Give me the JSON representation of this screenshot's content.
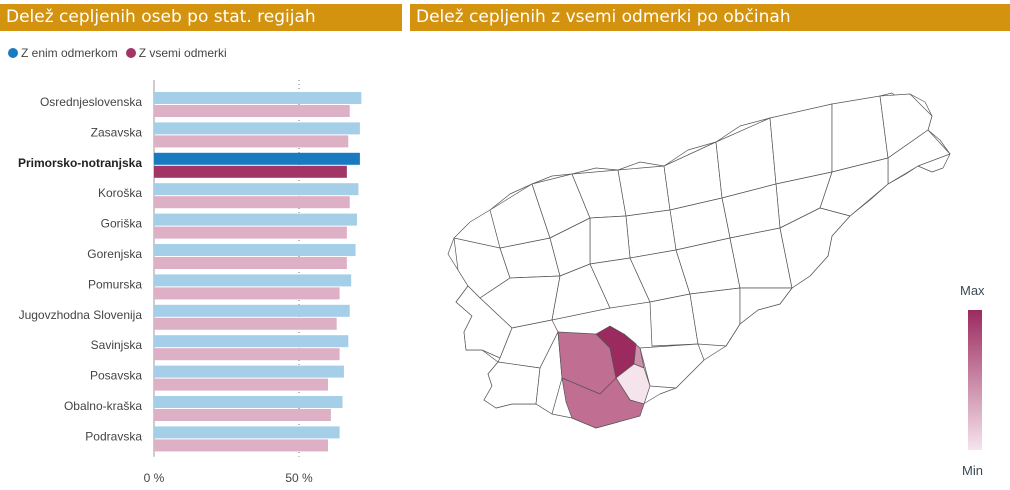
{
  "left_title": "Delež cepljenih oseb po stat. regijah",
  "right_title": "Delež cepljenih z vsemi odmerki po občinah",
  "legend": [
    {
      "label": "Z enim odmerkom",
      "color": "#1a7abf"
    },
    {
      "label": "Z vsemi odmerki",
      "color": "#a33566"
    }
  ],
  "map_scale": {
    "max_label": "Max",
    "min_label": "Min",
    "max_color": "#9b2b5f",
    "min_color": "#f6e4ec"
  },
  "chart_data": {
    "type": "bar",
    "orientation": "horizontal",
    "categories": [
      "Osrednjeslovenska",
      "Zasavska",
      "Primorsko-notranjska",
      "Koroška",
      "Goriška",
      "Gorenjska",
      "Pomurska",
      "Jugovzhodna Slovenija",
      "Savinjska",
      "Posavska",
      "Obalno-kraška",
      "Podravska"
    ],
    "highlighted": "Primorsko-notranjska",
    "series": [
      {
        "name": "Z enim odmerkom",
        "color": "#1a7abf",
        "light_color": "#a5cfe8",
        "values": [
          71.5,
          71.0,
          71.0,
          70.5,
          70.0,
          69.5,
          68.0,
          67.5,
          67.0,
          65.5,
          65.0,
          64.0
        ]
      },
      {
        "name": "Z vsemi odmerki",
        "color": "#a33566",
        "light_color": "#ddb0c6",
        "values": [
          67.5,
          67.0,
          66.5,
          67.5,
          66.5,
          66.5,
          64.0,
          63.0,
          64.0,
          60.0,
          61.0,
          60.0
        ]
      }
    ],
    "xlim": [
      0,
      100
    ],
    "xticks": [
      0,
      50
    ],
    "xtick_labels": [
      "0 %",
      "50 %"
    ],
    "gridlines": "dotted at ticks"
  }
}
